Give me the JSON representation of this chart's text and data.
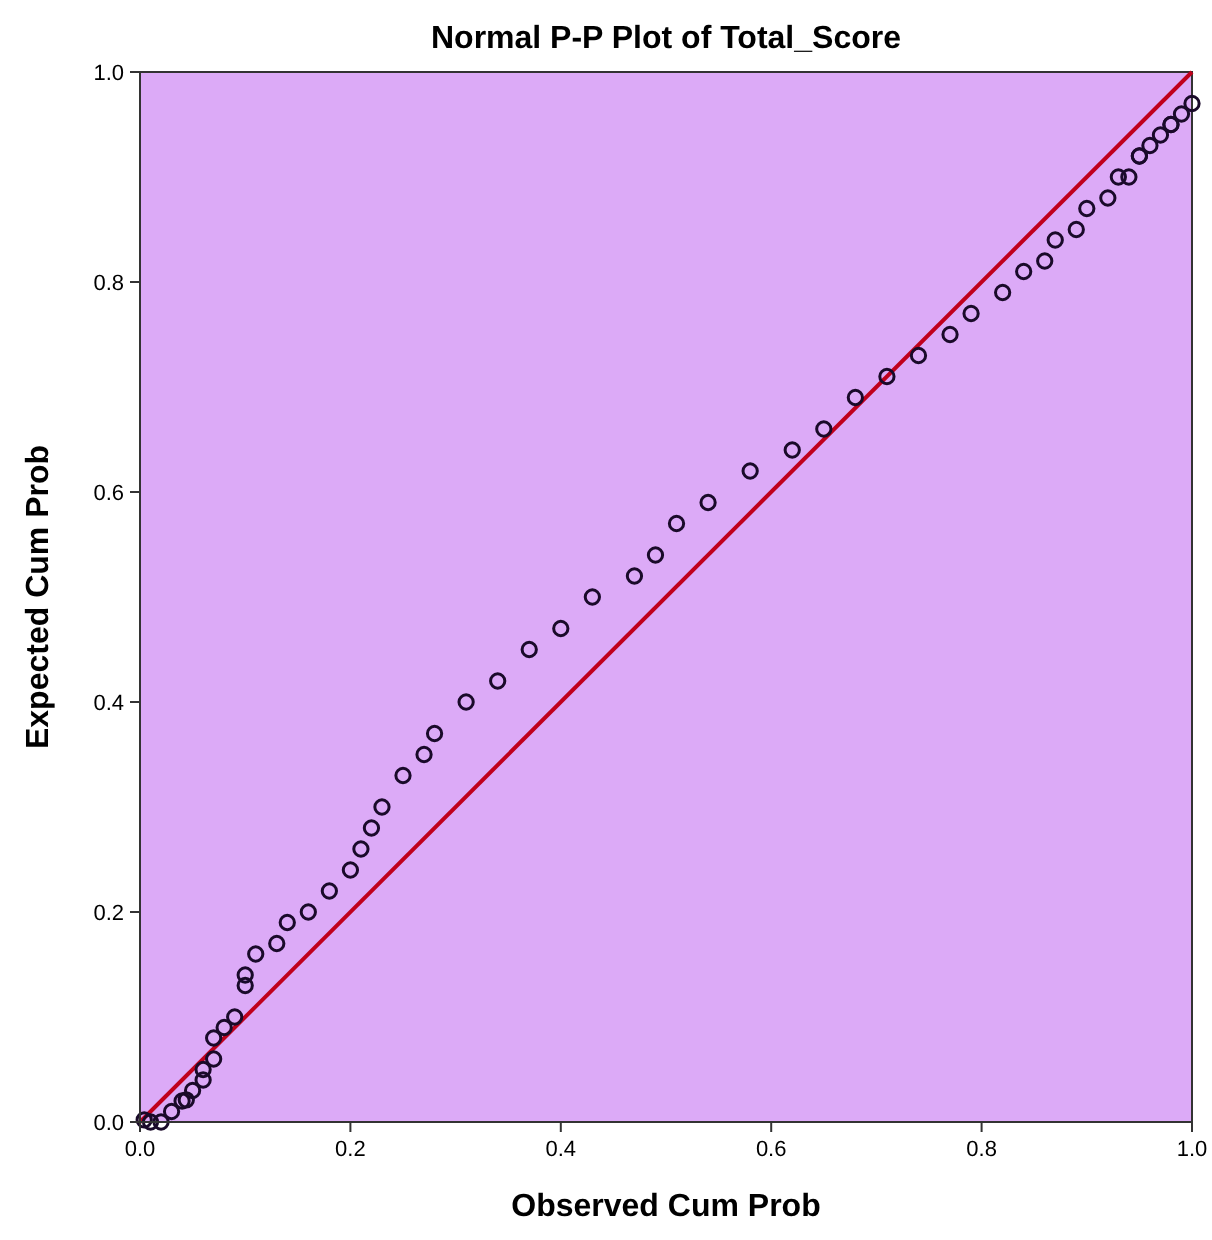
{
  "chart_data": {
    "type": "scatter",
    "title": "Normal P-P Plot of Total_Score",
    "xlabel": "Observed Cum Prob",
    "ylabel": "Expected Cum Prob",
    "xlim": [
      0,
      1
    ],
    "ylim": [
      0,
      1
    ],
    "xticks": [
      {
        "value": 0,
        "label": "0.0"
      },
      {
        "value": 0.2,
        "label": "0.2"
      },
      {
        "value": 0.4,
        "label": "0.4"
      },
      {
        "value": 0.6,
        "label": "0.6"
      },
      {
        "value": 0.8,
        "label": "0.8"
      },
      {
        "value": 1,
        "label": "1.0"
      }
    ],
    "yticks": [
      {
        "value": 0,
        "label": "0.0"
      },
      {
        "value": 0.2,
        "label": "0.2"
      },
      {
        "value": 0.4,
        "label": "0.4"
      },
      {
        "value": 0.6,
        "label": "0.6"
      },
      {
        "value": 0.8,
        "label": "0.8"
      },
      {
        "value": 1,
        "label": "1.0"
      }
    ],
    "grid": false,
    "series": [
      {
        "type": "scatter",
        "marker": "circle",
        "color": "#1a0a2a",
        "x": [
          0.004,
          0.01,
          0.02,
          0.03,
          0.04,
          0.044,
          0.05,
          0.06,
          0.06,
          0.07,
          0.07,
          0.08,
          0.09,
          0.1,
          0.1,
          0.11,
          0.13,
          0.14,
          0.16,
          0.18,
          0.2,
          0.21,
          0.22,
          0.23,
          0.25,
          0.27,
          0.28,
          0.31,
          0.34,
          0.37,
          0.4,
          0.43,
          0.47,
          0.49,
          0.51,
          0.54,
          0.58,
          0.62,
          0.65,
          0.68,
          0.71,
          0.74,
          0.77,
          0.79,
          0.82,
          0.84,
          0.86,
          0.87,
          0.89,
          0.9,
          0.92,
          0.93,
          0.94,
          0.95,
          0.95,
          0.96,
          0.97,
          0.98,
          0.98,
          0.99,
          1.0
        ],
        "values": [
          0.002,
          0.0,
          0.0,
          0.01,
          0.02,
          0.021,
          0.03,
          0.04,
          0.05,
          0.06,
          0.08,
          0.09,
          0.1,
          0.13,
          0.14,
          0.16,
          0.17,
          0.19,
          0.2,
          0.22,
          0.24,
          0.26,
          0.28,
          0.3,
          0.33,
          0.35,
          0.37,
          0.4,
          0.42,
          0.45,
          0.47,
          0.5,
          0.52,
          0.54,
          0.57,
          0.59,
          0.62,
          0.64,
          0.66,
          0.69,
          0.71,
          0.73,
          0.75,
          0.77,
          0.79,
          0.81,
          0.82,
          0.84,
          0.85,
          0.87,
          0.88,
          0.9,
          0.9,
          0.92,
          0.92,
          0.93,
          0.94,
          0.95,
          0.95,
          0.96,
          0.97
        ]
      },
      {
        "type": "line",
        "color": "#c0001c",
        "x": [
          0,
          1
        ],
        "values": [
          0,
          1
        ],
        "line_style": "solid"
      }
    ]
  }
}
